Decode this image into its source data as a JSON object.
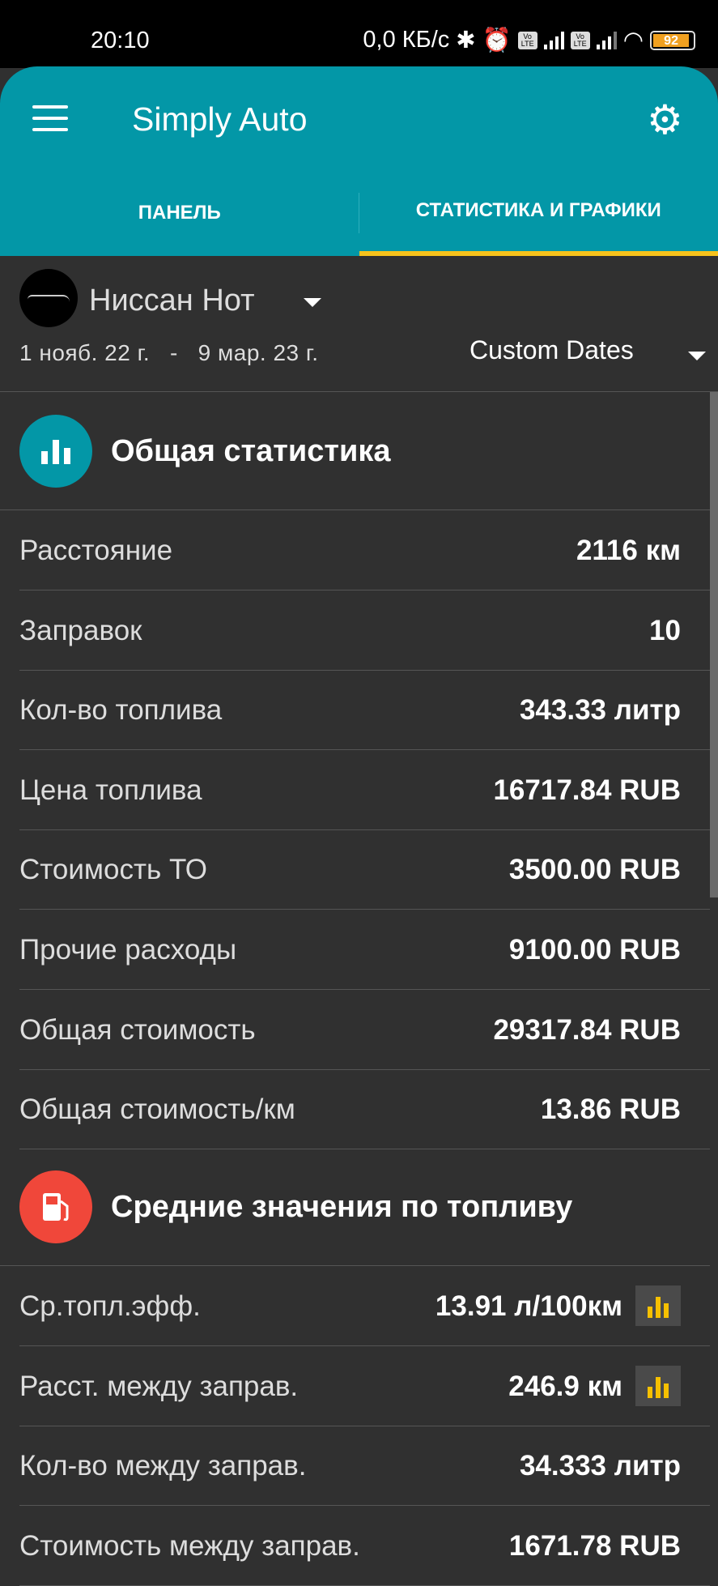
{
  "status_bar": {
    "time": "20:10",
    "network_speed": "0,0 КБ/с",
    "battery": "92",
    "volte": "Vo LTE"
  },
  "app_bar": {
    "title": "Simply Auto",
    "menu_icon": "hamburger-icon",
    "settings_icon": "gear-icon"
  },
  "tabs": [
    {
      "label": "ПАНЕЛЬ",
      "active": false
    },
    {
      "label": "СТАТИСТИКА И ГРАФИКИ",
      "active": true
    }
  ],
  "selector": {
    "car_name": "Ниссан Нот",
    "date_from": "1 нояб. 22 г.",
    "date_sep": "-",
    "date_to": "9 мар. 23 г.",
    "range_label": "Custom Dates"
  },
  "general": {
    "title": "Общая статистика",
    "icon": "bar-chart-icon",
    "color": "#0397a7",
    "rows": [
      {
        "label": "Расстояние",
        "value": "2116 км"
      },
      {
        "label": "Заправок",
        "value": "10"
      },
      {
        "label": "Кол-во топлива",
        "value": "343.33 литр"
      },
      {
        "label": "Цена топлива",
        "value": "16717.84 RUB"
      },
      {
        "label": "Стоимость ТО",
        "value": "3500.00 RUB"
      },
      {
        "label": "Прочие расходы",
        "value": "9100.00 RUB"
      },
      {
        "label": "Общая стоимость",
        "value": "29317.84 RUB"
      },
      {
        "label": "Общая стоимость/км",
        "value": "13.86 RUB"
      }
    ]
  },
  "fuel": {
    "title": "Средние значения по топливу",
    "icon": "fuel-pump-icon",
    "color": "#f0473a",
    "rows": [
      {
        "label": "Ср.топл.эфф.",
        "value": "13.91 л/100км",
        "chart": true
      },
      {
        "label": "Расст. между заправ.",
        "value": "246.9 км",
        "chart": true
      },
      {
        "label": "Кол-во между заправ.",
        "value": "34.333 литр",
        "chart": false
      },
      {
        "label": "Стоимость между заправ.",
        "value": "1671.78 RUB",
        "chart": false
      }
    ]
  },
  "colors": {
    "accent": "#0397a7",
    "tab_indicator": "#f6c21c",
    "chart_icon": "#f6c000",
    "background": "#303030"
  }
}
